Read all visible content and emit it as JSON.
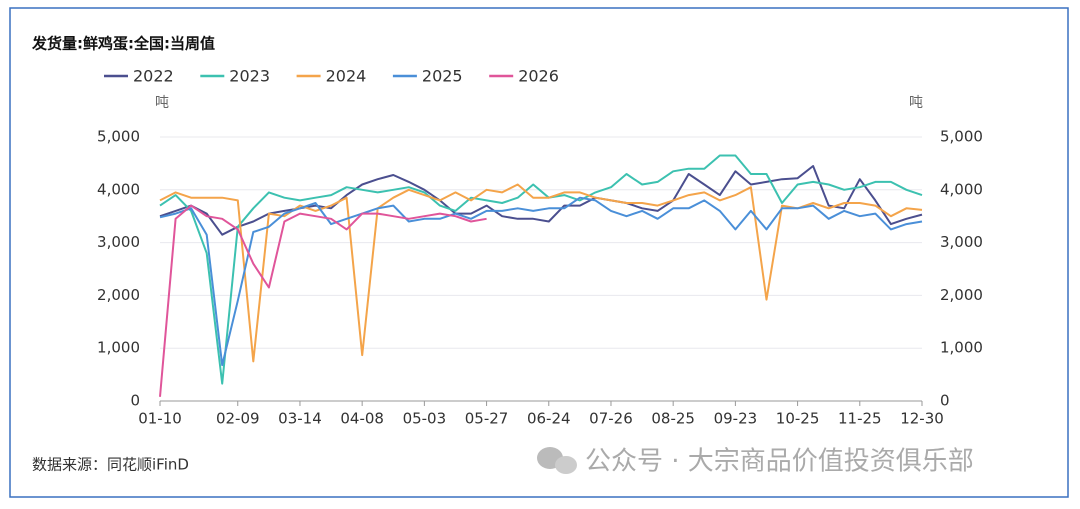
{
  "chart_data": {
    "type": "line",
    "title": "发货量:鲜鸡蛋:全国:当周值",
    "y_unit": "吨",
    "y2_unit": "吨",
    "source": "数据来源：同花顺iFinD",
    "watermark": "公众号 · 大宗商品价值投资俱乐部",
    "categories": [
      "01-10",
      null,
      null,
      null,
      null,
      "02-09",
      null,
      null,
      null,
      "03-14",
      null,
      null,
      null,
      "04-08",
      null,
      null,
      null,
      "05-03",
      null,
      null,
      null,
      "05-27",
      null,
      null,
      null,
      "06-24",
      null,
      null,
      null,
      "07-26",
      null,
      null,
      null,
      "08-25",
      null,
      null,
      null,
      "09-23",
      null,
      null,
      null,
      "10-25",
      null,
      null,
      null,
      "11-25",
      null,
      null,
      null,
      "12-30"
    ],
    "ylim": [
      0,
      5000
    ],
    "yticks": [
      0,
      {
        "value": 1000,
        "label": "1,000"
      },
      {
        "value": 2000,
        "label": "2,000"
      },
      {
        "value": 3000,
        "label": "3,000"
      },
      {
        "value": 4000,
        "label": "4,000"
      },
      {
        "value": 5000,
        "label": "5,000"
      }
    ],
    "y2lim": [
      0,
      5000
    ],
    "y2ticks": [
      0,
      {
        "value": 1000,
        "label": "1,000"
      },
      {
        "value": 2000,
        "label": "2,000"
      },
      {
        "value": 3000,
        "label": "3,000"
      },
      {
        "value": 4000,
        "label": "4,000"
      },
      {
        "value": 5000,
        "label": "5,000"
      }
    ],
    "grid": true,
    "series": [
      {
        "name": "2022",
        "color": "#4b4f8f",
        "values": [
          3500,
          3600,
          3700,
          3550,
          3150,
          3300,
          3400,
          3550,
          3600,
          3650,
          3700,
          3650,
          3900,
          4100,
          4200,
          4280,
          4150,
          4000,
          3800,
          3550,
          3550,
          3700,
          3500,
          3450,
          3450,
          3400,
          3700,
          3700,
          3850,
          3800,
          3750,
          3650,
          3600,
          3800,
          4300,
          4100,
          3900,
          4350,
          4100,
          4150,
          4200,
          4220,
          4450,
          3700,
          3650,
          4200,
          3800,
          3350,
          3450,
          3530
        ]
      },
      {
        "name": "2023",
        "color": "#3cc1b0",
        "values": [
          3700,
          3900,
          3600,
          2800,
          330,
          3300,
          3650,
          3950,
          3850,
          3800,
          3850,
          3900,
          4050,
          4000,
          3950,
          4000,
          4050,
          3950,
          3700,
          3600,
          3850,
          3800,
          3750,
          3850,
          4100,
          3850,
          3900,
          3800,
          3950,
          4050,
          4300,
          4100,
          4150,
          4350,
          4400,
          4400,
          4650,
          4650,
          4300,
          4300,
          3750,
          4100,
          4150,
          4100,
          4000,
          4050,
          4150,
          4150,
          4000,
          3900
        ]
      },
      {
        "name": "2024",
        "color": "#f4a44a",
        "values": [
          3800,
          3950,
          3850,
          3850,
          3850,
          3800,
          750,
          3550,
          3500,
          3700,
          3600,
          3700,
          3850,
          870,
          3650,
          3850,
          4000,
          3900,
          3800,
          3950,
          3800,
          4000,
          3950,
          4100,
          3850,
          3850,
          3950,
          3950,
          3850,
          3800,
          3750,
          3750,
          3700,
          3800,
          3900,
          3950,
          3800,
          3900,
          4050,
          1920,
          3700,
          3650,
          3750,
          3650,
          3750,
          3750,
          3700,
          3500,
          3650,
          3620
        ]
      },
      {
        "name": "2025",
        "color": "#4a8fd8",
        "values": [
          3480,
          3550,
          3650,
          3150,
          680,
          1900,
          3200,
          3300,
          3550,
          3650,
          3750,
          3350,
          3450,
          3550,
          3650,
          3700,
          3400,
          3450,
          3450,
          3550,
          3450,
          3600,
          3600,
          3650,
          3600,
          3650,
          3650,
          3850,
          3800,
          3600,
          3500,
          3600,
          3450,
          3650,
          3650,
          3800,
          3600,
          3250,
          3600,
          3250,
          3650,
          3650,
          3700,
          3450,
          3600,
          3500,
          3550,
          3250,
          3350,
          3400
        ]
      },
      {
        "name": "2026",
        "color": "#e0559a",
        "values": [
          80,
          3450,
          3700,
          3500,
          3450,
          3250,
          2600,
          2150,
          3400,
          3550,
          3500,
          3450,
          3250,
          3550,
          3550,
          3500,
          3450,
          3500,
          3550,
          3500,
          3400,
          3450,
          null,
          null,
          null,
          null,
          null,
          null,
          null,
          null,
          null,
          null,
          null,
          null,
          null,
          null,
          null,
          null,
          null,
          null,
          null,
          null,
          null,
          null,
          null,
          null,
          null,
          null,
          null,
          null
        ]
      }
    ]
  }
}
